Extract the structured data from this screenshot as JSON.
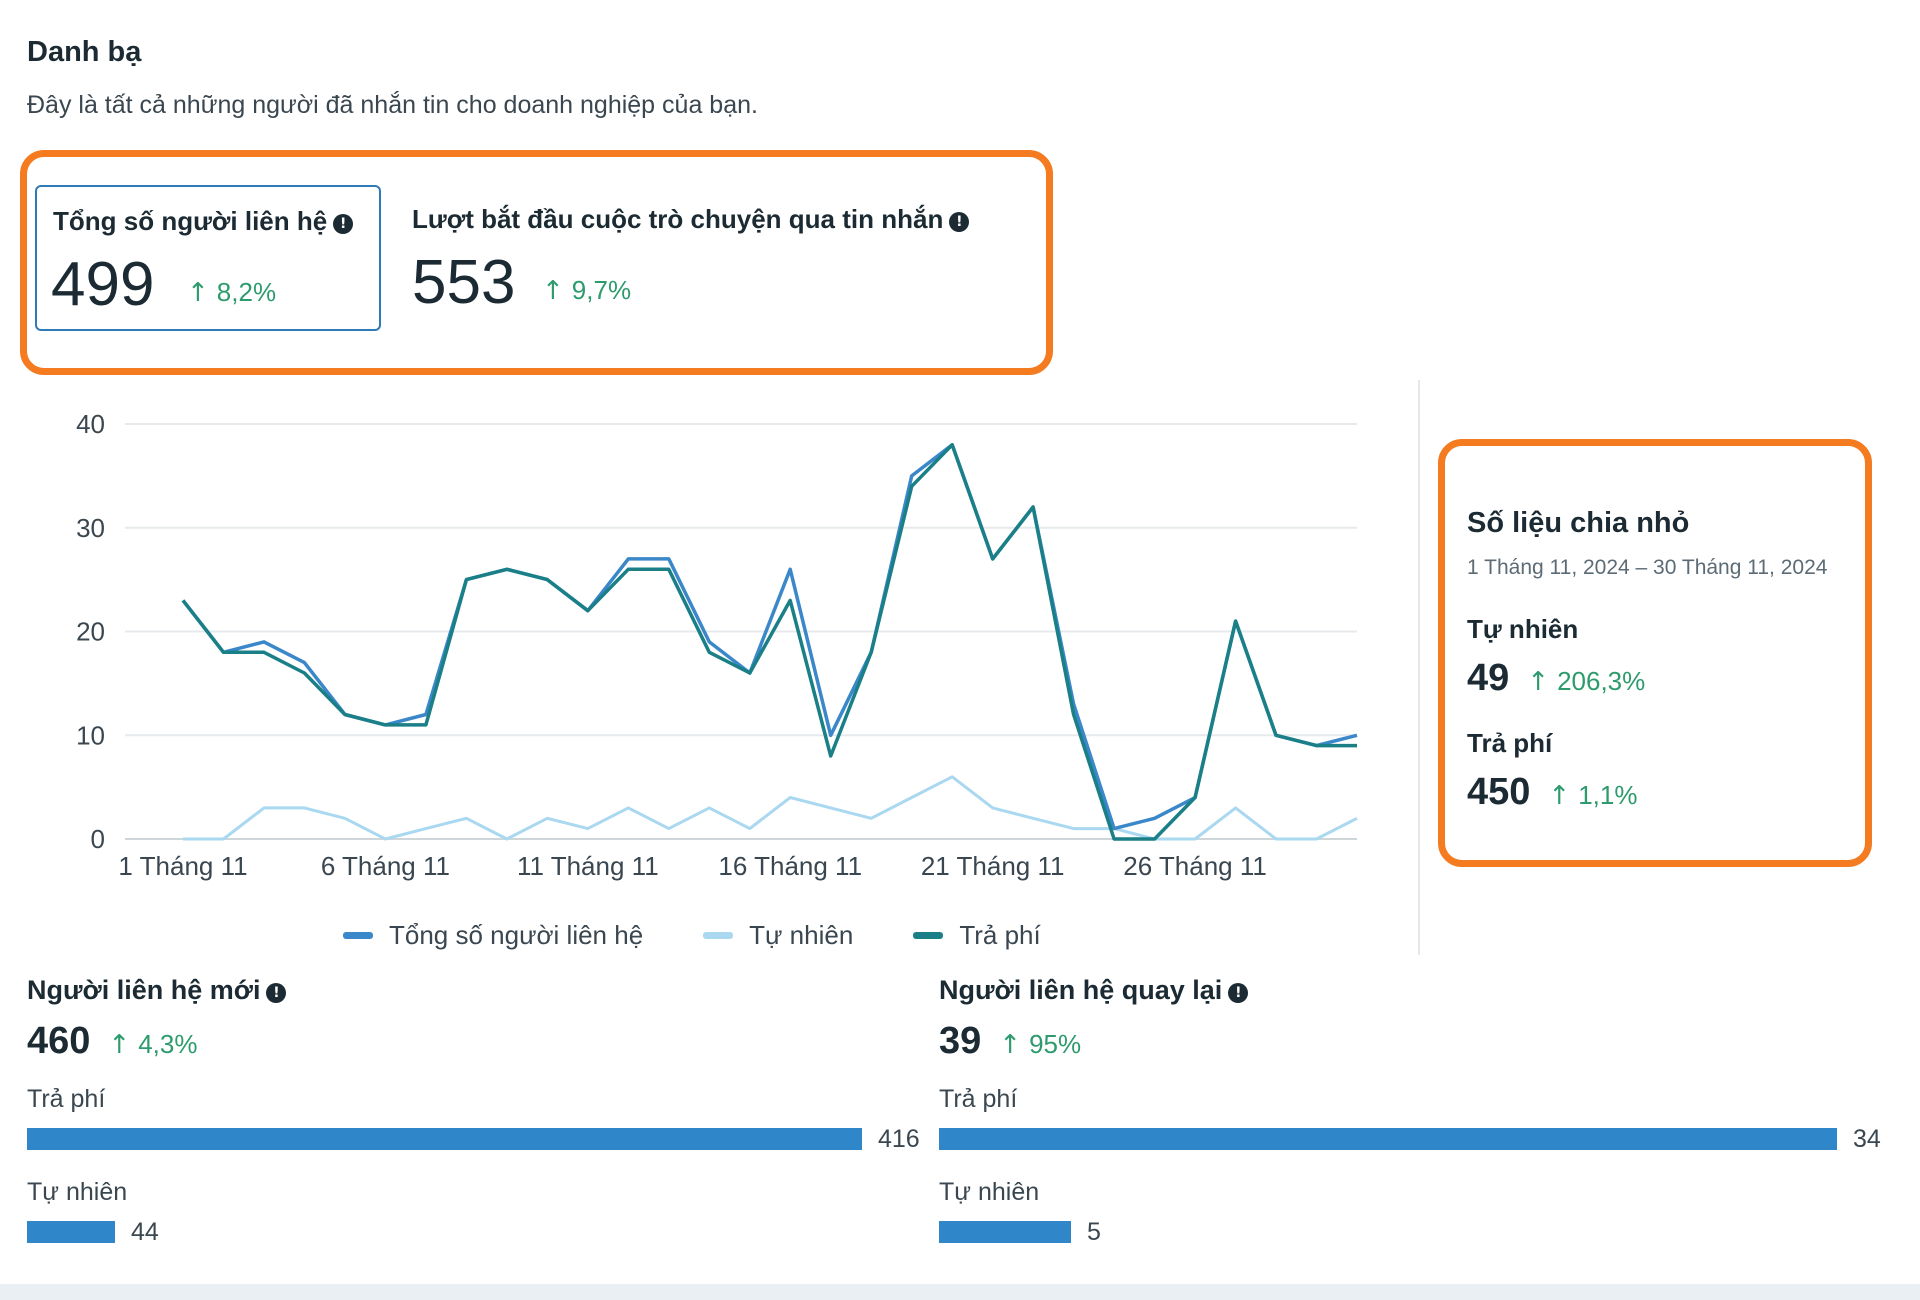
{
  "header": {
    "title": "Danh bạ",
    "subtitle": "Đây là tất cả những người đã nhắn tin cho doanh nghiệp của bạn."
  },
  "metrics": {
    "total_contacts": {
      "label": "Tổng số người liên hệ",
      "value": "499",
      "delta": "8,2%"
    },
    "conversations": {
      "label": "Lượt bắt đầu cuộc trò chuyện qua tin nhắn",
      "value": "553",
      "delta": "9,7%"
    }
  },
  "chart_data": {
    "type": "line",
    "x_tick_labels": [
      "1 Tháng 11",
      "6 Tháng 11",
      "11 Tháng 11",
      "16 Tháng 11",
      "21 Tháng 11",
      "26 Tháng 11"
    ],
    "x": [
      1,
      2,
      3,
      4,
      5,
      6,
      7,
      8,
      9,
      10,
      11,
      12,
      13,
      14,
      15,
      16,
      17,
      18,
      19,
      20,
      21,
      22,
      23,
      24,
      25,
      26,
      27,
      28,
      29,
      30
    ],
    "ylim": [
      0,
      40
    ],
    "y_ticks": [
      0,
      10,
      20,
      30,
      40
    ],
    "grid": true,
    "legend_position": "bottom",
    "series": [
      {
        "name": "Tổng số người liên hệ",
        "color": "#3a87c9",
        "values": [
          23,
          18,
          19,
          17,
          12,
          11,
          12,
          25,
          26,
          25,
          22,
          27,
          27,
          19,
          16,
          26,
          10,
          18,
          35,
          38,
          27,
          32,
          13,
          1,
          2,
          4,
          21,
          10,
          9,
          10
        ]
      },
      {
        "name": "Tự nhiên",
        "color": "#a9d8f0",
        "values": [
          0,
          0,
          3,
          3,
          2,
          0,
          1,
          2,
          0,
          2,
          1,
          3,
          1,
          3,
          1,
          4,
          3,
          2,
          4,
          6,
          3,
          2,
          1,
          1,
          0,
          0,
          3,
          0,
          0,
          2
        ]
      },
      {
        "name": "Trả phí",
        "color": "#1a7f86",
        "values": [
          23,
          18,
          18,
          16,
          12,
          11,
          11,
          25,
          26,
          25,
          22,
          26,
          26,
          18,
          16,
          23,
          8,
          18,
          34,
          38,
          27,
          32,
          12,
          0,
          0,
          4,
          21,
          10,
          9,
          9
        ]
      }
    ]
  },
  "breakdown": {
    "title": "Số liệu chia nhỏ",
    "date_range": "1 Tháng 11, 2024 – 30 Tháng 11, 2024",
    "organic": {
      "label": "Tự nhiên",
      "value": "49",
      "delta": "206,3%"
    },
    "paid": {
      "label": "Trả phí",
      "value": "450",
      "delta": "1,1%"
    }
  },
  "new_contacts": {
    "title": "Người liên hệ mới",
    "value": "460",
    "delta": "4,3%",
    "max": 416,
    "bars": [
      {
        "label": "Trả phí",
        "value": 416
      },
      {
        "label": "Tự nhiên",
        "value": 44
      }
    ]
  },
  "returning_contacts": {
    "title": "Người liên hệ quay lại",
    "value": "39",
    "delta": "95%",
    "max": 34,
    "bars": [
      {
        "label": "Trả phí",
        "value": 34
      },
      {
        "label": "Tự nhiên",
        "value": 5
      }
    ]
  },
  "icons": {
    "info": "info-icon",
    "arrow_up": "arrow-up-icon"
  }
}
